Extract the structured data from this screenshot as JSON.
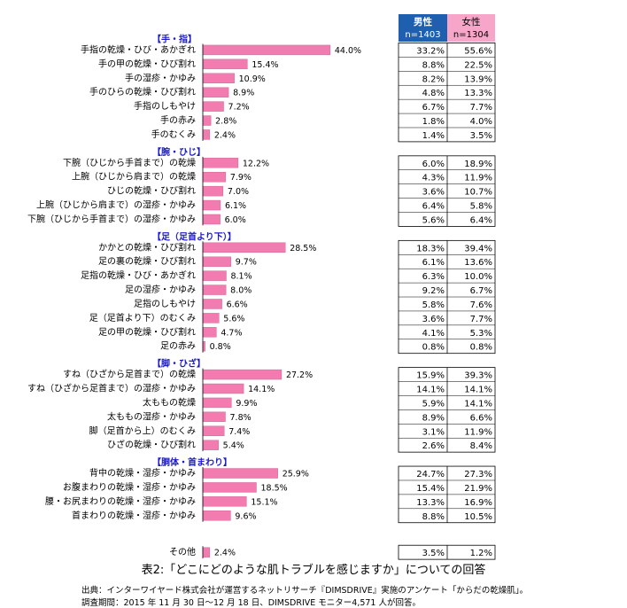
{
  "chart_data": {
    "type": "bar",
    "orientation": "horizontal",
    "value_suffix": "%",
    "bar_color": "#f27cb0",
    "male_header_color": "#1f5fb0",
    "female_header_color": "#f7a6c9",
    "category_color": "#1a1ac8",
    "columns": {
      "male_label": "男性",
      "male_n": "n=1403",
      "female_label": "女性",
      "female_n": "n=1304"
    },
    "groups": [
      {
        "name": "【手・指】",
        "items": [
          {
            "label": "手指の乾燥・ひび・あかぎれ",
            "total": 44.0,
            "male": 33.2,
            "female": 55.6
          },
          {
            "label": "手の甲の乾燥・ひび割れ",
            "total": 15.4,
            "male": 8.8,
            "female": 22.5
          },
          {
            "label": "手の湿疹・かゆみ",
            "total": 10.9,
            "male": 8.2,
            "female": 13.9
          },
          {
            "label": "手のひらの乾燥・ひび割れ",
            "total": 8.9,
            "male": 4.8,
            "female": 13.3
          },
          {
            "label": "手指のしもやけ",
            "total": 7.2,
            "male": 6.7,
            "female": 7.7
          },
          {
            "label": "手の赤み",
            "total": 2.8,
            "male": 1.8,
            "female": 4.0
          },
          {
            "label": "手のむくみ",
            "total": 2.4,
            "male": 1.4,
            "female": 3.5
          }
        ]
      },
      {
        "name": "【腕・ひじ】",
        "items": [
          {
            "label": "下腕（ひじから手首まで）の乾燥",
            "total": 12.2,
            "male": 6.0,
            "female": 18.9
          },
          {
            "label": "上腕（ひじから肩まで）の乾燥",
            "total": 7.9,
            "male": 4.3,
            "female": 11.9
          },
          {
            "label": "ひじの乾燥・ひび割れ",
            "total": 7.0,
            "male": 3.6,
            "female": 10.7
          },
          {
            "label": "上腕（ひじから肩まで）の湿疹・かゆみ",
            "total": 6.1,
            "male": 6.4,
            "female": 5.8
          },
          {
            "label": "下腕（ひじから手首まで）の湿疹・かゆみ",
            "total": 6.0,
            "male": 5.6,
            "female": 6.4
          }
        ]
      },
      {
        "name": "【足（足首より下）】",
        "items": [
          {
            "label": "かかとの乾燥・ひび割れ",
            "total": 28.5,
            "male": 18.3,
            "female": 39.4
          },
          {
            "label": "足の裏の乾燥・ひび割れ",
            "total": 9.7,
            "male": 6.1,
            "female": 13.6
          },
          {
            "label": "足指の乾燥・ひび・あかぎれ",
            "total": 8.1,
            "male": 6.3,
            "female": 10.0
          },
          {
            "label": "足の湿疹・かゆみ",
            "total": 8.0,
            "male": 9.2,
            "female": 6.7
          },
          {
            "label": "足指のしもやけ",
            "total": 6.6,
            "male": 5.8,
            "female": 7.6
          },
          {
            "label": "足（足首より下）のむくみ",
            "total": 5.6,
            "male": 3.6,
            "female": 7.7
          },
          {
            "label": "足の甲の乾燥・ひび割れ",
            "total": 4.7,
            "male": 4.1,
            "female": 5.3
          },
          {
            "label": "足の赤み",
            "total": 0.8,
            "male": 0.8,
            "female": 0.8
          }
        ]
      },
      {
        "name": "【脚・ひざ】",
        "items": [
          {
            "label": "すね（ひざから足首まで）の乾燥",
            "total": 27.2,
            "male": 15.9,
            "female": 39.3
          },
          {
            "label": "すね（ひざから足首まで）の湿疹・かゆみ",
            "total": 14.1,
            "male": 14.1,
            "female": 14.1
          },
          {
            "label": "太ももの乾燥",
            "total": 9.9,
            "male": 5.9,
            "female": 14.1
          },
          {
            "label": "太ももの湿疹・かゆみ",
            "total": 7.8,
            "male": 8.9,
            "female": 6.6
          },
          {
            "label": "脚（足首から上）のむくみ",
            "total": 7.4,
            "male": 3.1,
            "female": 11.9
          },
          {
            "label": "ひざの乾燥・ひび割れ",
            "total": 5.4,
            "male": 2.6,
            "female": 8.4
          }
        ]
      },
      {
        "name": "【胴体・首まわり】",
        "items": [
          {
            "label": "背中の乾燥・湿疹・かゆみ",
            "total": 25.9,
            "male": 24.7,
            "female": 27.3
          },
          {
            "label": "お腹まわりの乾燥・湿疹・かゆみ",
            "total": 18.5,
            "male": 15.4,
            "female": 21.9
          },
          {
            "label": "腰・お尻まわりの乾燥・湿疹・かゆみ",
            "total": 15.1,
            "male": 13.3,
            "female": 16.9
          },
          {
            "label": "首まわりの乾燥・湿疹・かゆみ",
            "total": 9.6,
            "male": 8.8,
            "female": 10.5
          }
        ]
      },
      {
        "name": "",
        "items": [
          {
            "label": "その他",
            "total": 2.4,
            "male": 3.5,
            "female": 1.2
          }
        ]
      }
    ]
  },
  "caption": "表2:「どこにどのような肌トラブルを感じますか」についての回答",
  "source_line1": "出典：インターワイヤード株式会社が運営するネットリサーチ『DIMSDRIVE』実施のアンケート「からだの乾燥肌」。",
  "source_line2": "調査期間：2015 年 11 月 30 日～12 月 18 日、DIMSDRIVE モニター4,571 人が回答。"
}
